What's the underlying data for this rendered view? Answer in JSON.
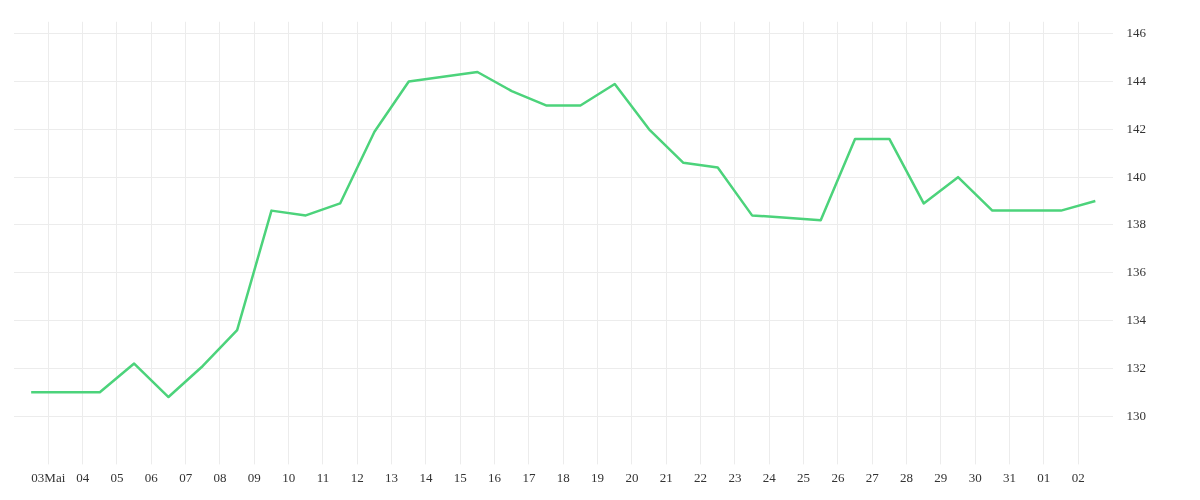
{
  "chart_data": {
    "type": "line",
    "x": [
      "--05-02T12:00",
      "--05-03T12:00",
      "--05-04T12:00",
      "--05-05T12:00",
      "--05-06T12:00",
      "--05-07T12:00",
      "--05-08T12:00",
      "--05-09T12:00",
      "--05-10T12:00",
      "--05-11T12:00",
      "--05-12T12:00",
      "--05-13T12:00",
      "--05-14T12:00",
      "--05-15T12:00",
      "--05-16T12:00",
      "--05-17T12:00",
      "--05-18T12:00",
      "--05-19T12:00",
      "--05-20T12:00",
      "--05-21T12:00",
      "--05-22T12:00",
      "--05-23T12:00",
      "--05-24T12:00",
      "--05-25T12:00",
      "--05-26T12:00",
      "--05-27T12:00",
      "--05-28T12:00",
      "--05-29T12:00",
      "--05-30T12:00",
      "--05-31T12:00",
      "--06-01T12:00",
      "--06-02T12:00"
    ],
    "series": [
      {
        "color": "#4cd37b",
        "values": [
          131.0,
          131.0,
          131.0,
          132.2,
          130.8,
          132.1,
          133.6,
          138.6,
          138.4,
          138.9,
          141.9,
          144.0,
          144.2,
          144.4,
          143.6,
          143.0,
          143.0,
          143.9,
          142.0,
          140.6,
          140.4,
          138.4,
          138.3,
          138.2,
          141.6,
          141.6,
          138.9,
          140.0,
          138.6,
          138.6,
          138.6,
          139.0
        ]
      }
    ],
    "xlim": [
      "--05-02",
      "--06-03"
    ],
    "xticks": [
      {
        "value": "--05-03",
        "label": "03Mai"
      },
      {
        "value": "--05-04",
        "label": "04"
      },
      {
        "value": "--05-05",
        "label": "05"
      },
      {
        "value": "--05-06",
        "label": "06"
      },
      {
        "value": "--05-07",
        "label": "07"
      },
      {
        "value": "--05-08",
        "label": "08"
      },
      {
        "value": "--05-09",
        "label": "09"
      },
      {
        "value": "--05-10",
        "label": "10"
      },
      {
        "value": "--05-11",
        "label": "11"
      },
      {
        "value": "--05-12",
        "label": "12"
      },
      {
        "value": "--05-13",
        "label": "13"
      },
      {
        "value": "--05-14",
        "label": "14"
      },
      {
        "value": "--05-15",
        "label": "15"
      },
      {
        "value": "--05-16",
        "label": "16"
      },
      {
        "value": "--05-17",
        "label": "17"
      },
      {
        "value": "--05-18",
        "label": "18"
      },
      {
        "value": "--05-19",
        "label": "19"
      },
      {
        "value": "--05-20",
        "label": "20"
      },
      {
        "value": "--05-21",
        "label": "21"
      },
      {
        "value": "--05-22",
        "label": "22"
      },
      {
        "value": "--05-23",
        "label": "23"
      },
      {
        "value": "--05-24",
        "label": "24"
      },
      {
        "value": "--05-25",
        "label": "25"
      },
      {
        "value": "--05-26",
        "label": "26"
      },
      {
        "value": "--05-27",
        "label": "27"
      },
      {
        "value": "--05-28",
        "label": "28"
      },
      {
        "value": "--05-29",
        "label": "29"
      },
      {
        "value": "--05-30",
        "label": "30"
      },
      {
        "value": "--05-31",
        "label": "31"
      },
      {
        "value": "--06-01",
        "label": "01"
      },
      {
        "value": "--06-02",
        "label": "02"
      }
    ],
    "ylim": [
      128.4,
      146.5
    ],
    "yticks": [
      130,
      132,
      134,
      136,
      138,
      140,
      142,
      144,
      146
    ],
    "grid": true,
    "legend": false,
    "marker": "none",
    "line_style": "solid"
  }
}
